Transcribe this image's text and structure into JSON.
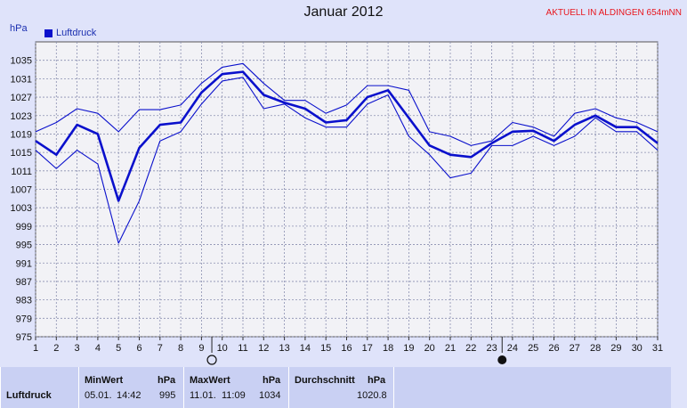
{
  "header": {
    "title": "Januar 2012",
    "station": "AKTUELL IN ALDINGEN 654mNN",
    "unit": "hPa",
    "legend_label": "Luftdruck"
  },
  "colors": {
    "background": "#dfe3fa",
    "plot_bg": "#f2f2f6",
    "grid": "#8a8fb0",
    "series": "#0a10cc",
    "station_text": "#e8161d"
  },
  "chart_data": {
    "type": "line",
    "title": "Januar 2012",
    "ylabel": "hPa",
    "xlabel": "",
    "x": [
      1,
      2,
      3,
      4,
      5,
      6,
      7,
      8,
      9,
      10,
      11,
      12,
      13,
      14,
      15,
      16,
      17,
      18,
      19,
      20,
      21,
      22,
      23,
      24,
      25,
      26,
      27,
      28,
      29,
      30,
      31
    ],
    "ylim": [
      975,
      1039
    ],
    "xlim": [
      1,
      31
    ],
    "yticks": [
      975,
      979,
      983,
      987,
      991,
      995,
      999,
      1003,
      1007,
      1011,
      1015,
      1019,
      1023,
      1027,
      1031,
      1035
    ],
    "grid": true,
    "legend_position": "top-left",
    "series": [
      {
        "name": "Luftdruck",
        "role": "mean",
        "values": [
          1017.5,
          1014.5,
          1021,
          1019,
          1004.5,
          1016,
          1021,
          1021.5,
          1028,
          1032,
          1032.5,
          1027.5,
          1025.8,
          1024.5,
          1021.5,
          1022,
          1027,
          1028.5,
          1022.5,
          1016.5,
          1014.5,
          1014,
          1017,
          1019.5,
          1019.7,
          1017.5,
          1021,
          1023,
          1020.5,
          1020.5,
          1017
        ]
      },
      {
        "role": "max",
        "values": [
          1019.5,
          1021.5,
          1024.5,
          1023.5,
          1019.5,
          1024.3,
          1024.3,
          1025.3,
          1030,
          1033.5,
          1034.3,
          1030,
          1026.3,
          1026.3,
          1023.5,
          1025.3,
          1029.5,
          1029.5,
          1028.5,
          1019.5,
          1018.5,
          1016.5,
          1017.5,
          1021.5,
          1020.5,
          1018.5,
          1023.5,
          1024.5,
          1022.5,
          1021.5,
          1019.5
        ]
      },
      {
        "role": "min",
        "values": [
          1015.5,
          1011.5,
          1015.5,
          1012.5,
          995.3,
          1004.5,
          1017.5,
          1019.5,
          1025.5,
          1030.5,
          1031.3,
          1024.5,
          1025.5,
          1022.5,
          1020.5,
          1020.5,
          1025.5,
          1027.5,
          1018.5,
          1014.5,
          1009.5,
          1010.5,
          1016.5,
          1016.5,
          1018.5,
          1016.5,
          1018.5,
          1022.5,
          1019.5,
          1019.5,
          1015.5
        ]
      }
    ],
    "markers": [
      {
        "x": 9.5,
        "symbol": "full-moon"
      },
      {
        "x": 23.5,
        "symbol": "new-moon"
      }
    ]
  },
  "stats": {
    "row_label": "Luftdruck",
    "min": {
      "header": "MinWert",
      "unit": "hPa",
      "date": "05.01.",
      "time": "14:42",
      "value": "995"
    },
    "max": {
      "header": "MaxWert",
      "unit": "hPa",
      "date": "11.01.",
      "time": "11:09",
      "value": "1034"
    },
    "avg": {
      "header": "Durchschnitt",
      "unit": "hPa",
      "value": "1020.8"
    }
  }
}
